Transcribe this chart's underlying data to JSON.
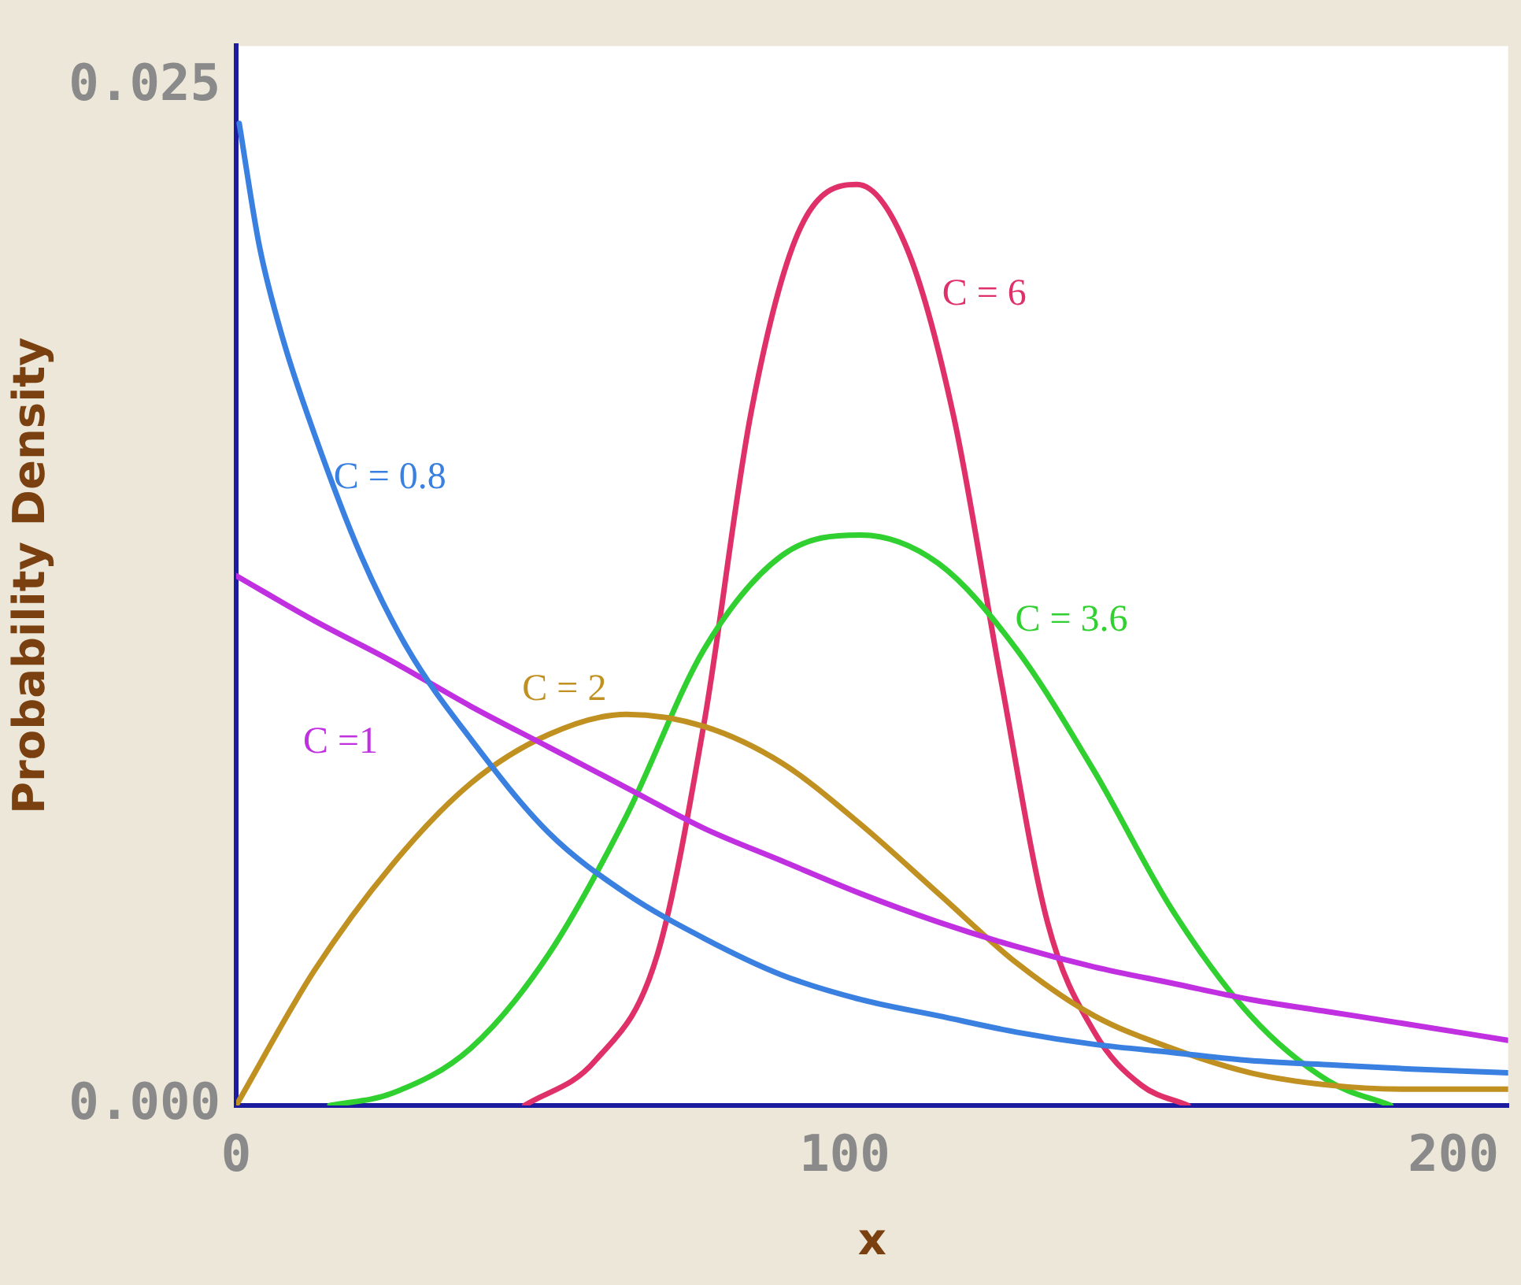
{
  "chart_data": {
    "type": "line",
    "xlabel": "x",
    "ylabel": "Probability Density",
    "xlim": [
      0,
      209
    ],
    "ylim": [
      0,
      0.026
    ],
    "xticks": [
      0,
      100,
      200
    ],
    "yticks": [
      {
        "value": 0,
        "label": "0.000"
      },
      {
        "value": 0.025,
        "label": "0.025"
      }
    ],
    "grid": false,
    "legend": false,
    "marker": "none",
    "line_style": "solid",
    "series": [
      {
        "name": "C = 0.8",
        "color": "#3a80e0",
        "x": [
          0.5,
          3.8,
          7.7,
          12.8,
          20.5,
          28.2,
          38.5,
          51.3,
          64.1,
          76.9,
          89.7,
          102.6,
          115.4,
          128.2,
          141,
          153.8,
          166.7,
          179.5,
          192.3,
          209
        ],
        "values": [
          0.0241,
          0.0211,
          0.0188,
          0.0165,
          0.0135,
          0.0112,
          0.009,
          0.0067,
          0.0052,
          0.0041,
          0.0032,
          0.0026,
          0.0022,
          0.0018,
          0.0015,
          0.0013,
          0.0011,
          0.001,
          0.0009,
          0.0008
        ]
      },
      {
        "name": "C =1",
        "color": "#c030e0",
        "x": [
          0,
          12.8,
          25.6,
          38.5,
          51.3,
          64.1,
          76.9,
          89.7,
          102.6,
          115.4,
          128.2,
          141,
          153.8,
          166.7,
          179.5,
          192.3,
          209
        ],
        "values": [
          0.013,
          0.0119,
          0.0109,
          0.0098,
          0.0088,
          0.0078,
          0.0068,
          0.006,
          0.0052,
          0.0045,
          0.0039,
          0.0034,
          0.003,
          0.0026,
          0.0023,
          0.002,
          0.0016
        ]
      },
      {
        "name": "C = 2",
        "color": "#c09020",
        "x": [
          0,
          12.8,
          25.6,
          38.5,
          51.3,
          64.1,
          76.9,
          89.7,
          102.6,
          115.4,
          128.2,
          141,
          153.8,
          166.7,
          179.5,
          192.3,
          209
        ],
        "values": [
          0,
          0.0033,
          0.0059,
          0.0079,
          0.0091,
          0.0096,
          0.0093,
          0.0084,
          0.0069,
          0.0052,
          0.0035,
          0.0022,
          0.0014,
          0.0008,
          0.0005,
          0.0004,
          0.0004
        ]
      },
      {
        "name": "C = 3.6",
        "color": "#30d030",
        "x": [
          15.4,
          25.6,
          38.5,
          51.3,
          64.1,
          76.9,
          89.7,
          102.6,
          115.4,
          128.2,
          141,
          153.8,
          166.7,
          179.5,
          189.7
        ],
        "values": [
          0,
          0.0003,
          0.0014,
          0.0037,
          0.0071,
          0.0112,
          0.0135,
          0.014,
          0.0133,
          0.0112,
          0.0082,
          0.0048,
          0.0022,
          0.0006,
          0.0
        ]
      },
      {
        "name": "C = 6",
        "color": "#e0306a",
        "x": [
          47.4,
          59,
          69.2,
          76.9,
          84.6,
          92.3,
          102,
          110.3,
          117.9,
          125.6,
          133.3,
          141,
          148.7,
          156.4
        ],
        "values": [
          0,
          0.0011,
          0.0037,
          0.0094,
          0.017,
          0.0214,
          0.0226,
          0.021,
          0.0169,
          0.0105,
          0.0045,
          0.0018,
          0.0005,
          0
        ]
      }
    ]
  }
}
